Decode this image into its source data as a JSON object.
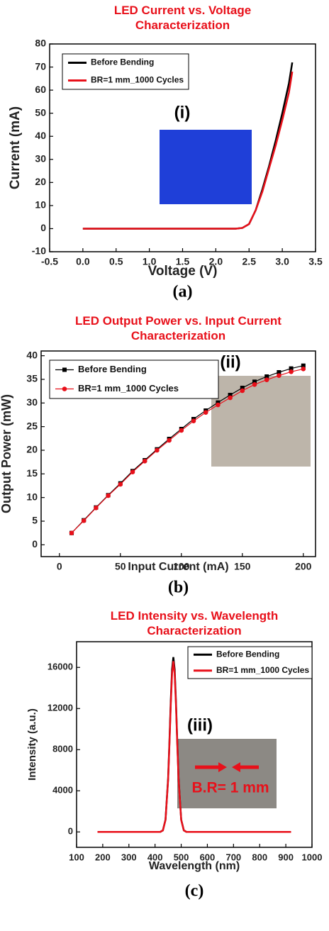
{
  "chart_data": [
    {
      "type": "line",
      "title": "LED Current vs. Voltage Characterization",
      "xlabel": "Voltage (V)",
      "ylabel": "Current (mA)",
      "label": "(a)",
      "inset_label": "(i)",
      "x": [
        0,
        0.5,
        1,
        1.5,
        2,
        2.3,
        2.4,
        2.5,
        2.6,
        2.7,
        2.8,
        2.9,
        3.0,
        3.1,
        3.15
      ],
      "series": [
        {
          "name": "Before Bending",
          "color": "#000000",
          "values": [
            0,
            0,
            0,
            0,
            0,
            0,
            0.3,
            2,
            8,
            17,
            27,
            38,
            50,
            63,
            72
          ]
        },
        {
          "name": "BR=1 mm_1000 Cycles",
          "color": "#e8101a",
          "values": [
            0,
            0,
            0,
            0,
            0,
            0,
            0.3,
            2,
            8,
            16,
            26,
            36,
            47,
            59,
            68
          ]
        }
      ],
      "xlim": [
        -0.5,
        3.5
      ],
      "xticks": [
        -0.5,
        {
          "value": 0,
          "label": "0.0"
        },
        0.5,
        {
          "value": 1,
          "label": "1.0"
        },
        1.5,
        {
          "value": 2,
          "label": "2.0"
        },
        2.5,
        {
          "value": 3,
          "label": "3.0"
        },
        3.5
      ],
      "ylim": [
        -10,
        80
      ],
      "yticks": [
        -10,
        0,
        10,
        20,
        30,
        40,
        50,
        60,
        70,
        80
      ]
    },
    {
      "type": "line",
      "title": "LED Output Power vs. Input Current Characterization",
      "xlabel": "Input Current (mA)",
      "ylabel": "Output Power (mW)",
      "label": "(b)",
      "inset_label": "(ii)",
      "x": [
        10,
        20,
        30,
        40,
        50,
        60,
        70,
        80,
        90,
        100,
        110,
        120,
        130,
        140,
        150,
        160,
        170,
        180,
        190,
        200
      ],
      "series": [
        {
          "name": "Before Bending",
          "color": "#000000",
          "marker": "square",
          "values": [
            2.5,
            5.2,
            7.9,
            10.5,
            13,
            15.6,
            17.9,
            20.2,
            22.4,
            24.5,
            26.6,
            28.4,
            30.1,
            31.7,
            33.2,
            34.5,
            35.6,
            36.5,
            37.3,
            37.9
          ]
        },
        {
          "name": "BR=1 mm_1000 Cycles",
          "color": "#e8101a",
          "marker": "circle",
          "values": [
            2.5,
            5.1,
            7.8,
            10.4,
            12.8,
            15.4,
            17.7,
            20,
            22.1,
            24.2,
            26.2,
            28,
            29.6,
            31.1,
            32.6,
            33.9,
            34.9,
            35.8,
            36.6,
            37.2
          ]
        }
      ],
      "xlim": [
        -15,
        210
      ],
      "xticks": [
        0,
        50,
        100,
        150,
        200
      ],
      "ylim": [
        -2.5,
        41
      ],
      "yticks": [
        0,
        5,
        10,
        15,
        20,
        25,
        30,
        35,
        40
      ]
    },
    {
      "type": "line",
      "title": "LED Intensity vs. Wavelength Characterization",
      "xlabel": "Wavelength (nm)",
      "ylabel": "Intensity (a.u.)",
      "label": "(c)",
      "inset_label": "(iii)",
      "annotation": "B.R= 1 mm",
      "x": [
        180,
        300,
        400,
        420,
        430,
        440,
        450,
        455,
        460,
        465,
        470,
        475,
        480,
        485,
        490,
        500,
        510,
        520,
        600,
        700,
        800,
        920
      ],
      "series": [
        {
          "name": "Before Bending",
          "color": "#000000",
          "values": [
            0,
            0,
            0,
            0,
            150,
            1190,
            5200,
            8740,
            12650,
            15800,
            17000,
            15800,
            12650,
            8740,
            5200,
            1190,
            150,
            0,
            0,
            0,
            0,
            0
          ]
        },
        {
          "name": "BR=1 mm_1000 Cycles",
          "color": "#e8101a",
          "values": [
            0,
            0,
            0,
            0,
            145,
            1160,
            5080,
            8530,
            12350,
            15400,
            16600,
            15400,
            12350,
            8530,
            5080,
            1160,
            145,
            0,
            0,
            0,
            0,
            0
          ]
        }
      ],
      "xlim": [
        100,
        1000
      ],
      "xticks": [
        100,
        200,
        300,
        400,
        500,
        600,
        700,
        800,
        900,
        1000
      ],
      "ylim": [
        -1500,
        18500
      ],
      "yticks": [
        0,
        4000,
        8000,
        12000,
        16000
      ]
    }
  ]
}
